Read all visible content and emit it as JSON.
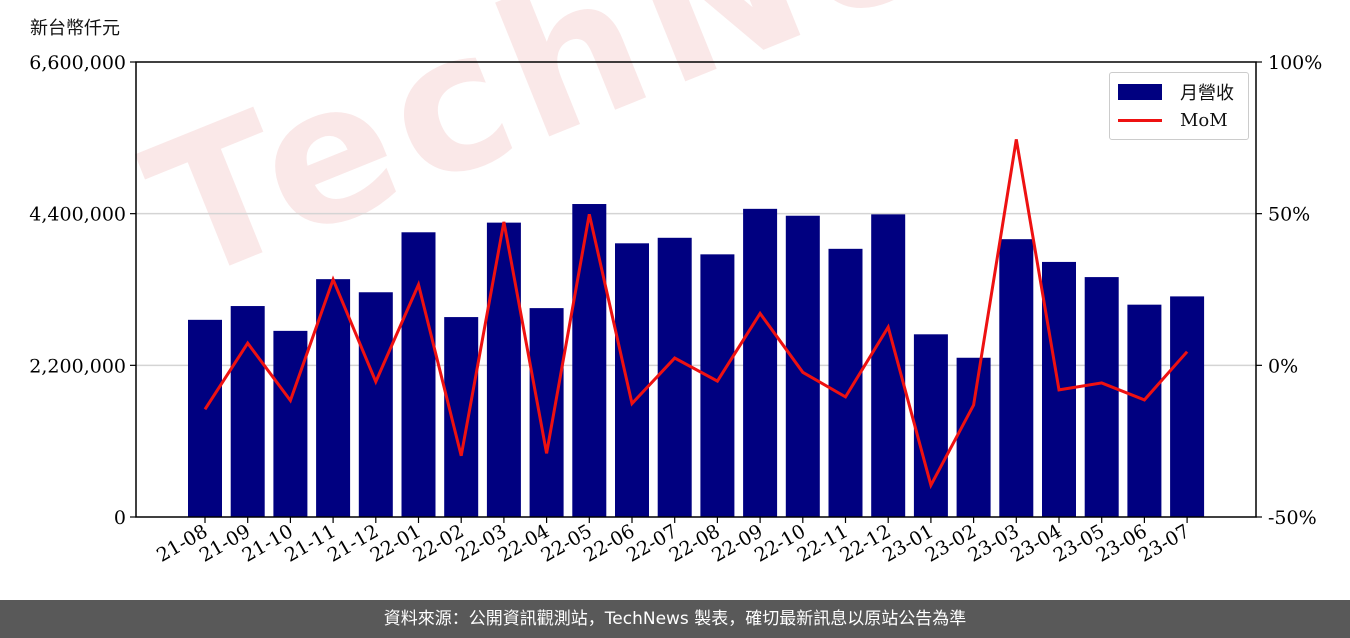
{
  "chart_data": {
    "type": "bar",
    "categories": [
      "21-08",
      "21-09",
      "21-10",
      "21-11",
      "21-12",
      "22-01",
      "22-02",
      "22-03",
      "22-04",
      "22-05",
      "22-06",
      "22-07",
      "22-08",
      "22-09",
      "22-10",
      "22-11",
      "22-12",
      "23-01",
      "23-02",
      "23-03",
      "23-04",
      "23-05",
      "23-06",
      "23-07"
    ],
    "series": [
      {
        "name": "月營收",
        "axis": "left",
        "color": "#000080",
        "values": [
          2860000,
          3060000,
          2700000,
          3450000,
          3260000,
          4130000,
          2900000,
          4270000,
          3030000,
          4540000,
          3970000,
          4050000,
          3810000,
          4470000,
          4370000,
          3890000,
          4390000,
          2650000,
          2310000,
          4030000,
          3700000,
          3480000,
          3080000,
          3200000
        ]
      },
      {
        "name": "MoM",
        "axis": "right",
        "type": "line",
        "color": "#ee1111",
        "values": [
          -14.5,
          7.3,
          -11.6,
          28.3,
          -5.4,
          26.6,
          -29.8,
          47.3,
          -29.0,
          49.8,
          -12.6,
          2.4,
          -5.2,
          17.1,
          -2.3,
          -10.4,
          12.6,
          -39.5,
          -13.1,
          74.5,
          -8.1,
          -5.8,
          -11.4,
          4.5
        ]
      }
    ],
    "ylabel_left": "新台幣仟元",
    "ylim_left": [
      0,
      6600000
    ],
    "yticks_left": [
      "0",
      "2,200,000",
      "4,400,000",
      "6,600,000"
    ],
    "ylim_right": [
      -50,
      100
    ],
    "yticks_right": [
      "-50%",
      "0%",
      "50%",
      "100%"
    ],
    "grid": "horizontal",
    "legend_position": "top-right"
  },
  "legend": {
    "bar_label": "月營收",
    "line_label": "MoM"
  },
  "watermark": "TechNews",
  "footer": "資料來源：公開資訊觀測站，TechNews 製表，確切最新訊息以原站公告為準"
}
